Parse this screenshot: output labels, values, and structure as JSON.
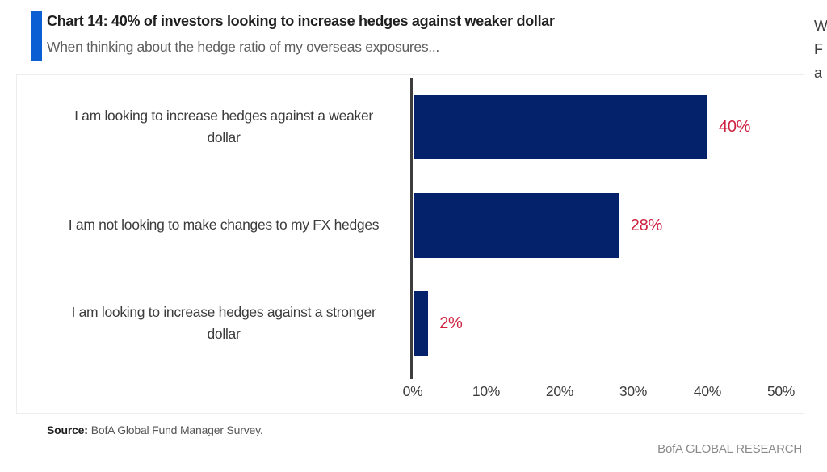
{
  "header": {
    "title": "Chart 14: 40% of investors looking to increase hedges against weaker dollar",
    "subtitle": "When thinking about the hedge ratio of my overseas exposures...",
    "accent_color": "#0A5FD2"
  },
  "edge_fragment": {
    "lines": [
      "W",
      "F",
      "a"
    ]
  },
  "chart_data": {
    "type": "bar",
    "orientation": "horizontal",
    "title": "Chart 14: 40% of investors looking to increase hedges against weaker dollar",
    "subtitle": "When thinking about the hedge ratio of my overseas exposures...",
    "categories": [
      "I am looking to increase hedges against a weaker dollar",
      "I am not looking to make changes to my FX hedges",
      "I am looking to increase hedges against a stronger dollar"
    ],
    "label_lines": [
      [
        "I am looking to increase hedges against a weaker",
        "dollar"
      ],
      [
        "I am not looking to make changes to my FX hedges"
      ],
      [
        "I am looking to increase hedges against a stronger",
        "dollar"
      ]
    ],
    "values": [
      40,
      28,
      2
    ],
    "value_labels": [
      "40%",
      "28%",
      "2%"
    ],
    "x_ticks": [
      "0%",
      "10%",
      "20%",
      "30%",
      "40%",
      "50%"
    ],
    "xlim": [
      0,
      50
    ],
    "grid": "off",
    "legend": "none",
    "bar_color": "#04216B",
    "value_label_color": "#CF2140",
    "axis_color": "#3D3D3D"
  },
  "footer": {
    "source_label": "Source:",
    "source_text": "BofA Global Fund Manager Survey.",
    "brand": "BofA GLOBAL RESEARCH"
  }
}
